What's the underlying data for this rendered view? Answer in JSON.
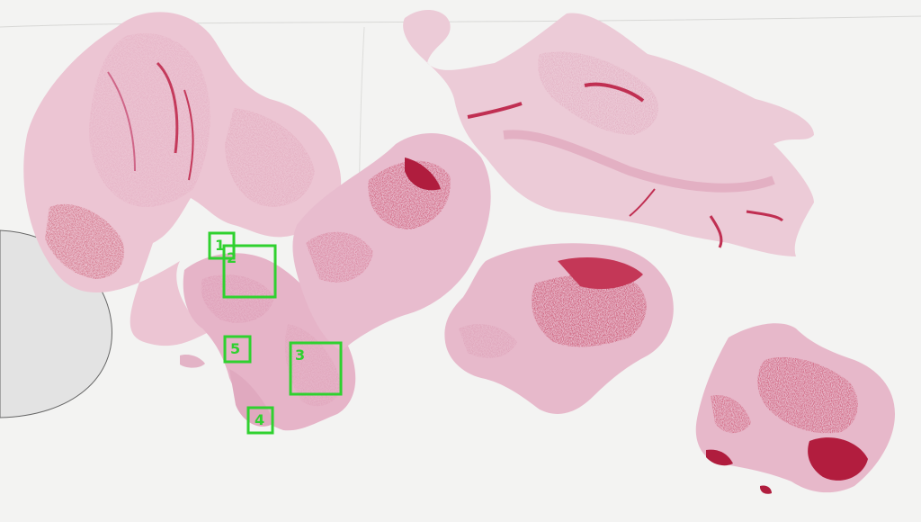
{
  "image": {
    "kind": "histology-slide",
    "stain": "H&E",
    "background_color": "#f3f3f2",
    "tissue_colors": [
      "#e7b9cc",
      "#d9869f",
      "#c03a5a",
      "#b51f3f"
    ]
  },
  "annotations": {
    "box_color": "#2fd12f",
    "boxes": [
      {
        "label": "1"
      },
      {
        "label": "2"
      },
      {
        "label": "3"
      },
      {
        "label": "4"
      },
      {
        "label": "5"
      }
    ]
  }
}
